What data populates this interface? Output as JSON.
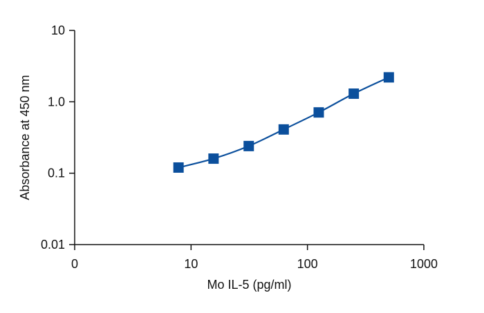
{
  "chart_data": {
    "type": "scatter",
    "xlabel": "Mo IL-5 (pg/ml)",
    "ylabel": "Absorbance at 450 nm",
    "x_scale": "log",
    "y_scale": "log",
    "xlim": [
      1,
      1000
    ],
    "ylim": [
      0.01,
      10
    ],
    "x_ticks": [
      {
        "value": 1,
        "label": "0"
      },
      {
        "value": 10,
        "label": "10"
      },
      {
        "value": 100,
        "label": "100"
      },
      {
        "value": 1000,
        "label": "1000"
      }
    ],
    "y_ticks": [
      {
        "value": 0.01,
        "label": "0.01"
      },
      {
        "value": 0.1,
        "label": "0.1"
      },
      {
        "value": 1,
        "label": "1.0"
      },
      {
        "value": 10,
        "label": "10"
      }
    ],
    "series": [
      {
        "points": [
          {
            "x": 7.8,
            "y": 0.12
          },
          {
            "x": 15.6,
            "y": 0.16
          },
          {
            "x": 31.3,
            "y": 0.24
          },
          {
            "x": 62.5,
            "y": 0.41
          },
          {
            "x": 125,
            "y": 0.71
          },
          {
            "x": 250,
            "y": 1.3
          },
          {
            "x": 500,
            "y": 2.2
          }
        ],
        "color": "#0b4f9c",
        "marker": "square",
        "fit_line": true
      }
    ],
    "grid": false,
    "legend": "none"
  }
}
